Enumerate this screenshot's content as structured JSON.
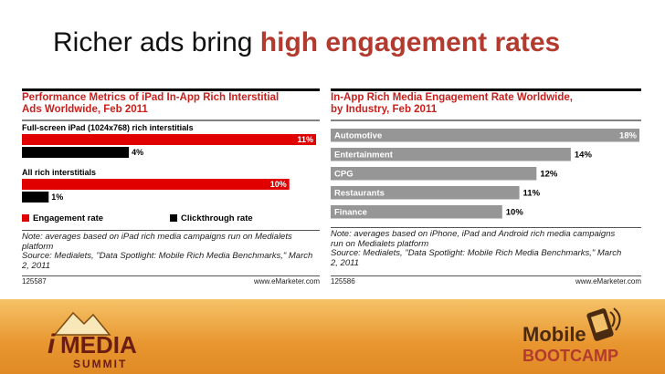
{
  "slide": {
    "title_plain": "Richer ads bring ",
    "title_highlight": "high engagement rates"
  },
  "colors": {
    "red": "#e00000",
    "black": "#000000",
    "gray": "#969696",
    "title_red": "#c8201c",
    "band": "#e8962f"
  },
  "chart_data": [
    {
      "type": "bar",
      "title_line1": "Performance Metrics of iPad In-App Rich Interstitial",
      "title_line2": "Ads Worldwide, Feb 2011",
      "groups": [
        "Full-screen iPad (1024x768) rich interstitials",
        "All rich interstitials"
      ],
      "series": [
        {
          "name": "Engagement rate",
          "values": [
            11,
            10
          ],
          "labels": [
            "11%",
            "10%"
          ]
        },
        {
          "name": "Clickthrough rate",
          "values": [
            4,
            1
          ],
          "labels": [
            "4%",
            "1%"
          ]
        }
      ],
      "xlim": [
        0,
        11
      ],
      "legend": [
        "Engagement rate",
        "Clickthrough rate"
      ],
      "note_lines": [
        "Note: averages based on iPad rich media campaigns run on Medialets",
        "platform"
      ],
      "source_lines": [
        "Source: Medialets, \"Data Spotlight: Mobile Rich Media Benchmarks,\" March",
        "2, 2011"
      ],
      "footer_id": "125587",
      "footer_web": "www.eMarketer.com"
    },
    {
      "type": "bar",
      "title_line1": "In-App Rich Media Engagement Rate Worldwide,",
      "title_line2": "by Industry, Feb 2011",
      "categories": [
        "Automotive",
        "Entertainment",
        "CPG",
        "Restaurants",
        "Finance"
      ],
      "values": [
        18,
        14,
        12,
        11,
        10
      ],
      "labels": [
        "18%",
        "14%",
        "12%",
        "11%",
        "10%"
      ],
      "xlim": [
        0,
        18
      ],
      "note_lines": [
        "Note: averages based on iPhone, iPad and Android rich media campaigns",
        "run on Medialets platform"
      ],
      "source_lines": [
        "Source: Medialets, \"Data Spotlight: Mobile Rich Media Benchmarks,\" March",
        "2, 2011"
      ],
      "footer_id": "125586",
      "footer_web": "www.eMarketer.com"
    }
  ],
  "logos": {
    "imedia_i": "i",
    "imedia_word": "MEDIA",
    "imedia_sub": "SUMMIT",
    "mobile_line1": "Mobile",
    "mobile_line2": "BOOTCAMP"
  }
}
